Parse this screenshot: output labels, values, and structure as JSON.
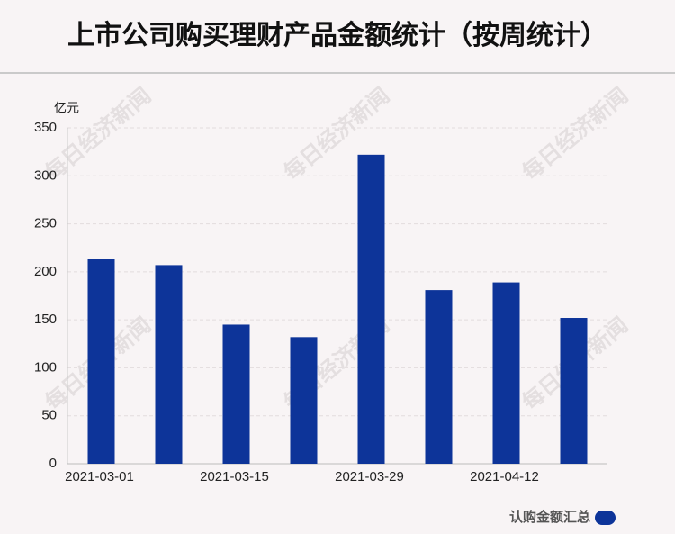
{
  "chart_data": {
    "type": "bar",
    "title": "上市公司购买理财产品金额统计（按周统计）",
    "y_unit": "亿元",
    "watermark": "每日经济新闻",
    "categories": [
      "2021-03-01",
      null,
      "2021-03-15",
      null,
      "2021-03-29",
      null,
      "2021-04-12",
      null
    ],
    "series": [
      {
        "name": "认购金额汇总",
        "color": "#0d3499",
        "values": [
          213,
          207,
          145,
          132,
          322,
          181,
          189,
          152
        ]
      }
    ],
    "ylim": [
      0,
      350
    ],
    "yticks": [
      0,
      50,
      100,
      150,
      200,
      250,
      300,
      350
    ],
    "grid": true,
    "legend": "bottom-right"
  }
}
